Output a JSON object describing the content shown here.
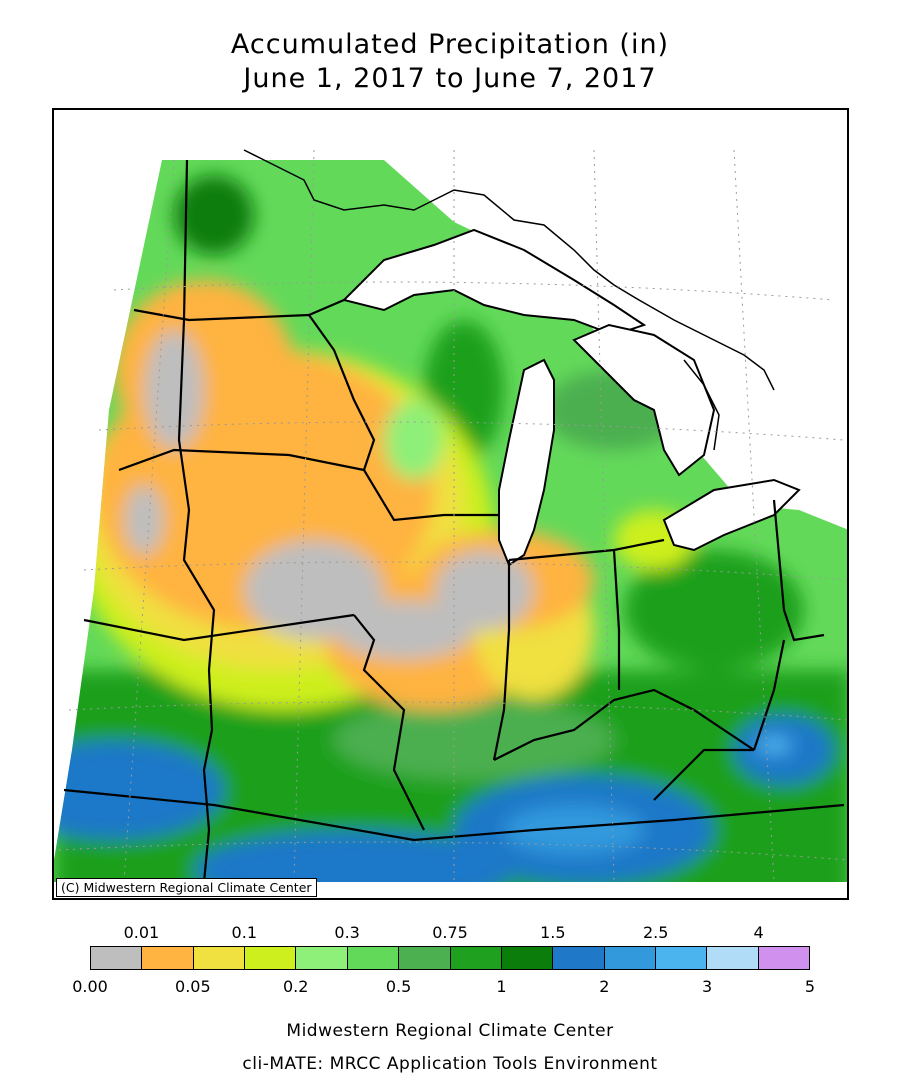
{
  "title_line1": "Accumulated Precipitation (in)",
  "title_line2": "June 1, 2017 to June 7, 2017",
  "copyright": "(C) Midwestern Regional Climate Center",
  "legend": {
    "colors": [
      "#bebebe",
      "#ffb340",
      "#f0e040",
      "#cdef1e",
      "#8ef078",
      "#63d95a",
      "#4caf50",
      "#1fa01f",
      "#0a7d0a",
      "#1f78c8",
      "#3399dd",
      "#4bb3ee",
      "#b0dcf8",
      "#d090ee"
    ],
    "top_labels": [
      "0.01",
      "0.1",
      "0.3",
      "0.75",
      "1.5",
      "2.5",
      "4"
    ],
    "bottom_labels": [
      "0.00",
      "0.05",
      "0.2",
      "0.5",
      "1",
      "2",
      "3",
      "5"
    ]
  },
  "footer_line1": "Midwestern Regional Climate Center",
  "footer_line2": "cli-MATE: MRCC Application Tools Environment"
}
